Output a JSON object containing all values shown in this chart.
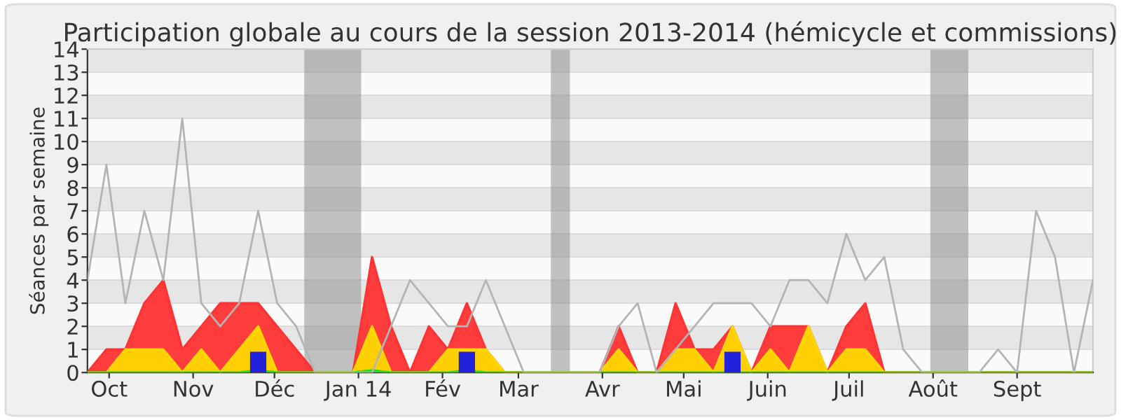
{
  "chart_data": {
    "type": "area",
    "title": "Participation globale au cours de la session 2013-2014 (hémicycle et commissions)",
    "ylabel": "Séances par semaine",
    "x": [
      "2013-09-23",
      "2013-09-30",
      "2013-10-07",
      "2013-10-14",
      "2013-10-21",
      "2013-10-28",
      "2013-11-04",
      "2013-11-11",
      "2013-11-18",
      "2013-11-25",
      "2013-12-02",
      "2013-12-09",
      "2013-12-16",
      "2013-12-23",
      "2013-12-30",
      "2014-01-06",
      "2014-01-13",
      "2014-01-20",
      "2014-01-27",
      "2014-02-03",
      "2014-02-10",
      "2014-02-17",
      "2014-02-24",
      "2014-03-03",
      "2014-03-10",
      "2014-03-17",
      "2014-03-24",
      "2014-03-31",
      "2014-04-07",
      "2014-04-14",
      "2014-04-21",
      "2014-04-28",
      "2014-05-05",
      "2014-05-12",
      "2014-05-19",
      "2014-05-26",
      "2014-06-02",
      "2014-06-09",
      "2014-06-16",
      "2014-06-23",
      "2014-06-30",
      "2014-07-07",
      "2014-07-14",
      "2014-07-21",
      "2014-07-28",
      "2014-08-04",
      "2014-08-11",
      "2014-08-18",
      "2014-08-25",
      "2014-09-01",
      "2014-09-08",
      "2014-09-15",
      "2014-09-22",
      "2014-09-29"
    ],
    "series": [
      {
        "type": "line",
        "color": "#b4b4b4",
        "values": [
          4,
          9,
          3,
          7,
          4,
          11,
          3,
          2,
          3,
          7,
          3,
          2,
          0,
          0,
          0,
          0,
          2,
          4,
          3,
          2,
          2,
          4,
          2,
          0,
          0,
          0,
          0,
          0,
          2,
          3,
          0,
          1,
          2,
          3,
          3,
          3,
          2,
          4,
          4,
          3,
          6,
          4,
          5,
          1,
          0,
          0,
          0,
          0,
          1,
          0,
          7,
          5,
          0,
          4
        ]
      },
      {
        "color": "#ff3333",
        "values": [
          0,
          1,
          1,
          3,
          4,
          1,
          2,
          3,
          3,
          3,
          2,
          1,
          0,
          0,
          0,
          5,
          2,
          0,
          2,
          1,
          3,
          1,
          0,
          0,
          0,
          0,
          0,
          0,
          2,
          0,
          0,
          3,
          1,
          1,
          2,
          0,
          2,
          2,
          2,
          0,
          2,
          3,
          0,
          0,
          0,
          0,
          0,
          0,
          0,
          0,
          0,
          0,
          0,
          0
        ]
      },
      {
        "color": "#ffd700",
        "values": [
          0,
          0,
          1,
          1,
          1,
          0,
          1,
          0,
          1,
          2,
          0,
          0,
          0,
          0,
          0,
          2,
          0,
          0,
          0,
          1,
          1,
          1,
          0,
          0,
          0,
          0,
          0,
          0,
          1,
          0,
          0,
          1,
          1,
          0,
          2,
          0,
          1,
          0,
          2,
          0,
          1,
          1,
          0,
          0,
          0,
          0,
          0,
          0,
          0,
          0,
          0,
          0,
          0,
          0
        ]
      },
      {
        "color": "#22dd22",
        "values": [
          0,
          0,
          0,
          0,
          0,
          0,
          0,
          0,
          0,
          0.1,
          0,
          0,
          0,
          0,
          0,
          0.1,
          0,
          0,
          0,
          0,
          0.1,
          0,
          0,
          0,
          0,
          0,
          0,
          0,
          0,
          0,
          0,
          0,
          0,
          0,
          0,
          0,
          0,
          0,
          0,
          0,
          0,
          0,
          0,
          0,
          0,
          0,
          0,
          0,
          0,
          0,
          0,
          0,
          0,
          0
        ]
      },
      {
        "type": "bar",
        "color": "#2222dd",
        "x": [
          "2013-11-25",
          "2014-02-10",
          "2014-05-19"
        ],
        "values": [
          0.9,
          0.9,
          0.9
        ]
      }
    ],
    "bands": [
      {
        "axis": "x",
        "from": "2013-12-12",
        "to": "2014-01-02",
        "color": "#909090"
      },
      {
        "axis": "x",
        "from": "2014-03-13",
        "to": "2014-03-20",
        "color": "#909090"
      },
      {
        "axis": "x",
        "from": "2014-07-31",
        "to": "2014-08-14",
        "color": "#909090"
      }
    ],
    "xlim": [
      "2013-09-23",
      "2014-09-29"
    ],
    "xticks": [
      {
        "value": "2013-10-01",
        "label": "Oct"
      },
      {
        "value": "2013-11-01",
        "label": "Nov"
      },
      {
        "value": "2013-12-01",
        "label": "Déc"
      },
      {
        "value": "2014-01-01",
        "label": "Jan 14"
      },
      {
        "value": "2014-02-01",
        "label": "Fév"
      },
      {
        "value": "2014-03-01",
        "label": "Mar"
      },
      {
        "value": "2014-04-01",
        "label": "Avr"
      },
      {
        "value": "2014-05-01",
        "label": "Mai"
      },
      {
        "value": "2014-06-01",
        "label": "Juin"
      },
      {
        "value": "2014-07-01",
        "label": "Juil"
      },
      {
        "value": "2014-08-01",
        "label": "Août"
      },
      {
        "value": "2014-09-01",
        "label": "Sept"
      }
    ],
    "ylim": [
      0,
      14
    ],
    "yticks": [
      0,
      1,
      2,
      3,
      4,
      5,
      6,
      7,
      8,
      9,
      10,
      11,
      12,
      13,
      14
    ],
    "grid": "y",
    "legend": false
  }
}
